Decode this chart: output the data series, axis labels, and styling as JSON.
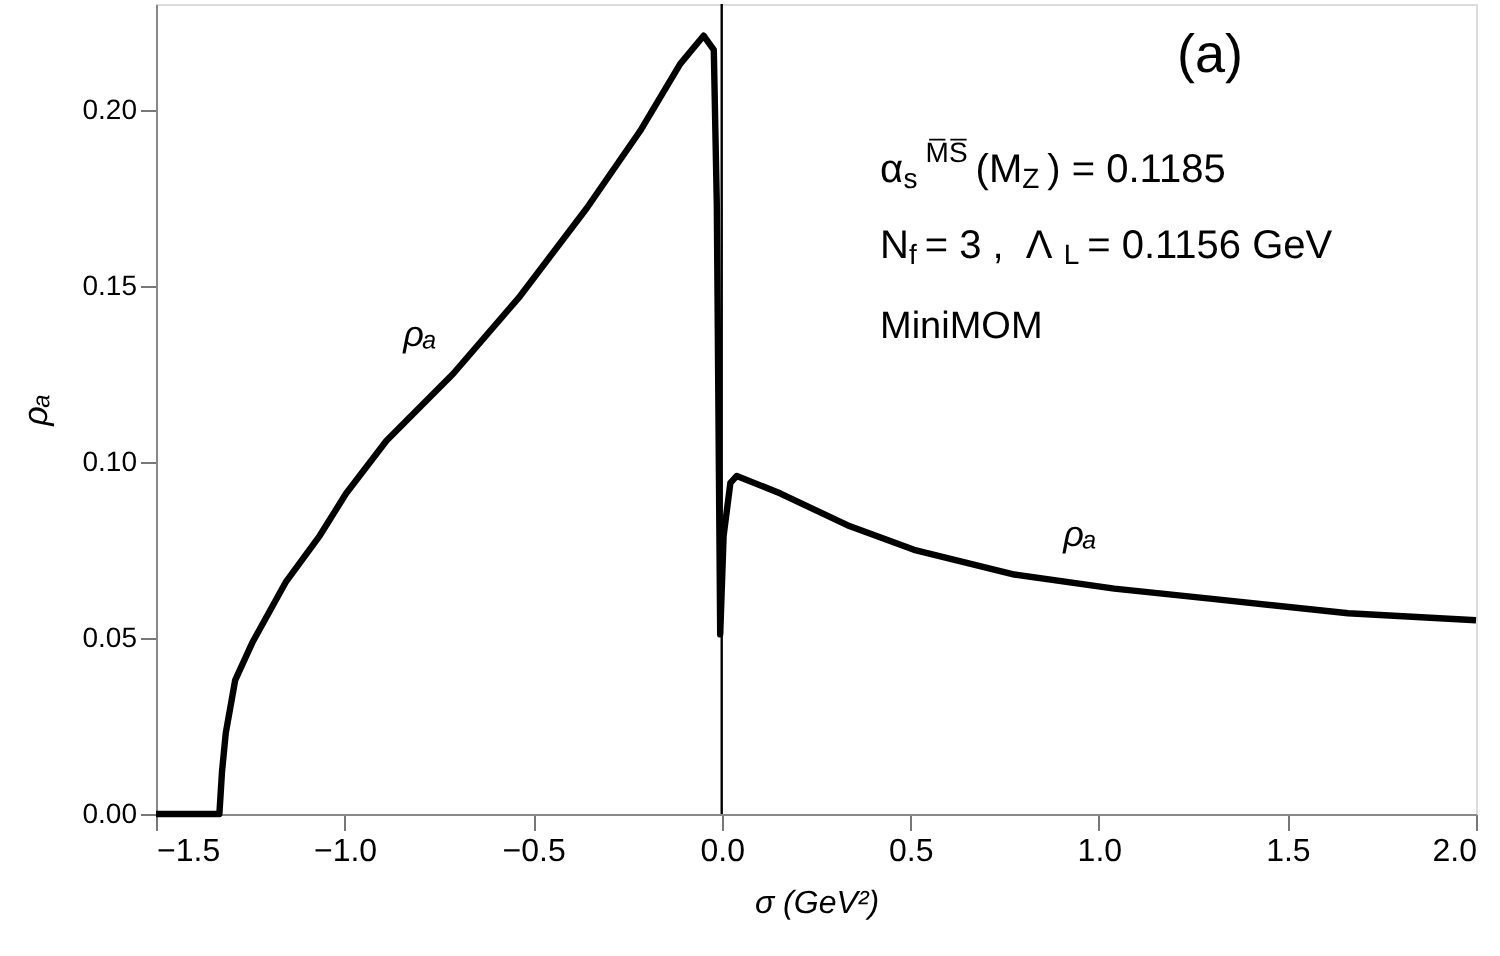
{
  "chart_data": {
    "type": "line",
    "xlabel": "σ  (GeV²)",
    "ylabel": "ρₐ",
    "x": [
      -1.5,
      -1.332,
      -1.325,
      -1.315,
      -1.29,
      -1.243,
      -1.155,
      -1.066,
      -0.996,
      -0.889,
      -0.712,
      -0.535,
      -0.358,
      -0.216,
      -0.11,
      -0.048,
      -0.021,
      -0.013,
      -0.004,
      0.005,
      0.023,
      0.04,
      0.156,
      0.333,
      0.51,
      0.776,
      1.041,
      1.307,
      1.661,
      2.0
    ],
    "series": [
      {
        "color": "#000000",
        "values": [
          0,
          0,
          0.012,
          0.023,
          0.038,
          0.049,
          0.066,
          0.079,
          0.091,
          0.106,
          0.125,
          0.147,
          0.172,
          0.194,
          0.213,
          0.221,
          0.217,
          0.173,
          0.051,
          0.079,
          0.094,
          0.096,
          0.091,
          0.082,
          0.075,
          0.068,
          0.064,
          0.061,
          0.057,
          0.055
        ]
      }
    ],
    "xlim": [
      -1.5,
      2.0
    ],
    "ylim": [
      0,
      0.23
    ],
    "xticks": [
      {
        "value": -1.5,
        "label": "−1.5"
      },
      {
        "value": -1.0,
        "label": "−1.0"
      },
      {
        "value": -0.5,
        "label": "−0.5"
      },
      {
        "value": 0,
        "label": "0.0"
      },
      {
        "value": 0.5,
        "label": "0.5"
      },
      {
        "value": 1.0,
        "label": "1.0"
      },
      {
        "value": 1.5,
        "label": "1.5"
      },
      {
        "value": 2.0,
        "label": "2.0"
      }
    ],
    "yticks": [
      {
        "value": 0,
        "label": "0.00"
      },
      {
        "value": 0.05,
        "label": "0.05"
      },
      {
        "value": 0.1,
        "label": "0.10"
      },
      {
        "value": 0.15,
        "label": "0.15"
      },
      {
        "value": 0.2,
        "label": "0.20"
      }
    ],
    "ref_lines": [
      {
        "axis": "x",
        "value": 0,
        "color": "#000000"
      }
    ],
    "annotations": [
      "(a)",
      "α$_{s}$$^{M̅S̅}$(M$_{Z}$) = 0.1185",
      "N$_{f}$ = 3 ,  Λ$_{L}$ = 0.1156 GeV",
      "MiniMOM",
      "ρₐ",
      "ρₐ"
    ],
    "grid": false,
    "marker": "none",
    "line_style": "solid"
  }
}
